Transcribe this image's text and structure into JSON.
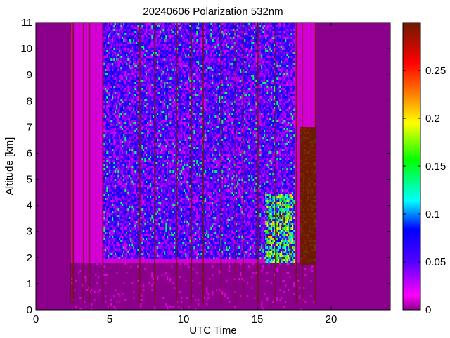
{
  "chart_data": {
    "type": "heatmap",
    "title": "20240606 Polarization 532nm",
    "xlabel": "UTC Time",
    "ylabel": "Altitude [km]",
    "xlim": [
      0,
      24
    ],
    "ylim": [
      0,
      11
    ],
    "x_ticks": [
      0,
      5,
      10,
      15,
      20
    ],
    "y_ticks": [
      0,
      1,
      2,
      3,
      4,
      5,
      6,
      7,
      8,
      9,
      10,
      11
    ],
    "colorbar": {
      "range": [
        0,
        0.3
      ],
      "ticks": [
        0,
        0.05,
        0.1,
        0.15,
        0.2,
        0.25
      ],
      "colormap": "hsv-like",
      "colors": [
        "#8b008b",
        "#ff00ff",
        "#5000ff",
        "#0000ff",
        "#00ffff",
        "#00ff00",
        "#ffff00",
        "#ff8000",
        "#ff0000",
        "#6b1a00"
      ]
    },
    "background_color": "#8b008b",
    "data_time_range": [
      2.3,
      18.9
    ],
    "signal_description_regions": [
      {
        "x": [
          4.5,
          17.5
        ],
        "y": [
          2.0,
          11.0
        ],
        "typical_value": 0.05
      },
      {
        "x": [
          15.5,
          17.5
        ],
        "y": [
          1.8,
          4.5
        ],
        "typical_value": 0.12
      },
      {
        "x": [
          17.9,
          18.9
        ],
        "y": [
          1.7,
          7.0
        ],
        "typical_value": 0.3
      }
    ],
    "vertical_streaks_hours": [
      2.3,
      2.5,
      3.2,
      3.6,
      4.5,
      7.0,
      8.0,
      9.5,
      10.5,
      11.3,
      12.5,
      13.5,
      14.0,
      15.0,
      16.2,
      17.6,
      18.0,
      18.9
    ]
  }
}
